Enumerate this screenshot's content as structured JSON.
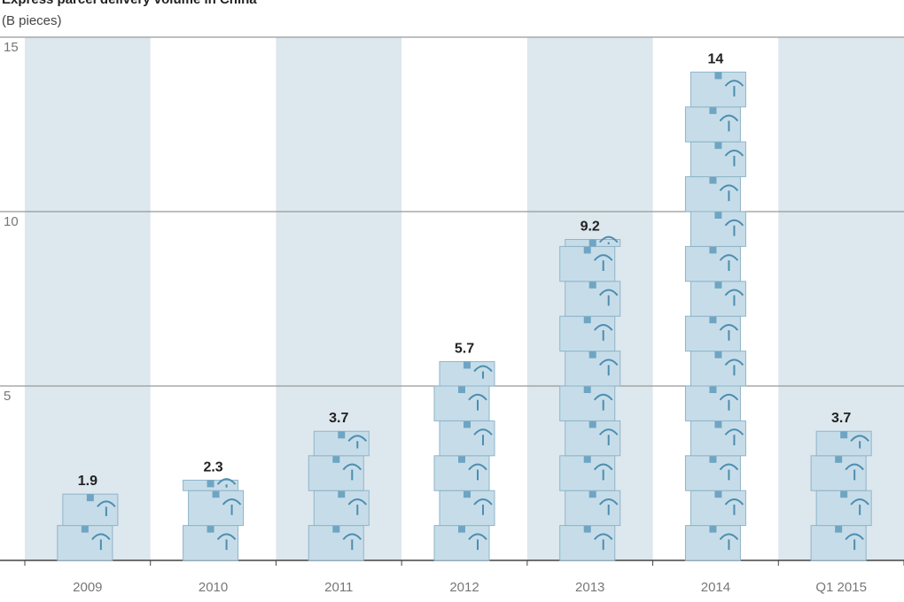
{
  "chart_data": {
    "type": "bar",
    "title": "Express parcel delivery volume in China",
    "subtitle": "(B pieces)",
    "categories": [
      "2009",
      "2010",
      "2011",
      "2012",
      "2013",
      "2014",
      "Q1 2015"
    ],
    "values": [
      1.9,
      2.3,
      3.7,
      5.7,
      9.2,
      14,
      3.7
    ],
    "color": "#c6dde9",
    "ylim": [
      0,
      15
    ],
    "yticks": [
      5,
      10,
      15
    ],
    "grid": true
  }
}
